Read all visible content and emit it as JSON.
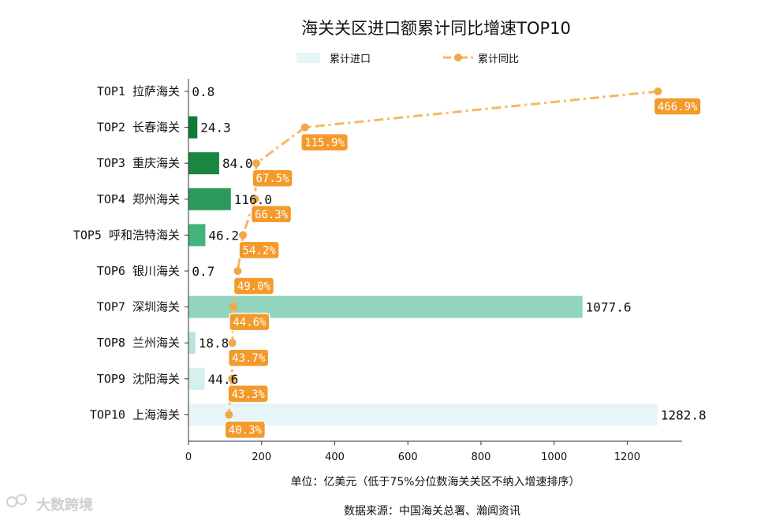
{
  "watermark": "大数跨境",
  "colors": {
    "line": "#f5b862",
    "marker": "#f0a848",
    "label_bg": "#f39a2a",
    "legend_bar": "#e6f5f8"
  },
  "chart_data": {
    "type": "bar",
    "orientation": "horizontal",
    "title": "海关关区进口额累计同比增速TOP10",
    "xlabel": "单位：亿美元（低于75%分位数海关关区不纳入增速排序）",
    "source": "数据来源：中国海关总署、瀚闻资讯",
    "xlim": [
      0,
      1350
    ],
    "xticks": [
      "0",
      "200",
      "400",
      "600",
      "800",
      "1000",
      "1200"
    ],
    "xtick_values": [
      0,
      200,
      400,
      600,
      800,
      1000,
      1200
    ],
    "legend_position": "top-center",
    "categories": [
      "TOP1 拉萨海关",
      "TOP2 长春海关",
      "TOP3 重庆海关",
      "TOP4 郑州海关",
      "TOP5 呼和浩特海关",
      "TOP6 银川海关",
      "TOP7 深圳海关",
      "TOP8 兰州海关",
      "TOP9 沈阳海关",
      "TOP10 上海海关"
    ],
    "series": [
      {
        "name": "累计进口",
        "type": "bar",
        "values": [
          0.8,
          24.3,
          84.0,
          116.0,
          46.2,
          0.7,
          1077.6,
          18.8,
          44.6,
          1282.8
        ],
        "labels": [
          "0.8",
          "24.3",
          "84.0",
          "116.0",
          "46.2",
          "0.7",
          "1077.6",
          "18.8",
          "44.6",
          "1282.8"
        ],
        "colors": [
          "#0a6b30",
          "#0e7a38",
          "#1a8741",
          "#2b9a5a",
          "#45b27a",
          "#6cc49a",
          "#91d4c0",
          "#b7e4de",
          "#d4f0ef",
          "#e6f5f8"
        ]
      },
      {
        "name": "累计同比",
        "type": "line",
        "values": [
          466.9,
          115.9,
          67.5,
          66.3,
          54.2,
          49.0,
          44.6,
          43.7,
          43.3,
          40.3
        ],
        "labels": [
          "466.9%",
          "115.9%",
          "67.5%",
          "66.3%",
          "54.2%",
          "49.0%",
          "44.6%",
          "43.7%",
          "43.3%",
          "40.3%"
        ]
      }
    ]
  }
}
